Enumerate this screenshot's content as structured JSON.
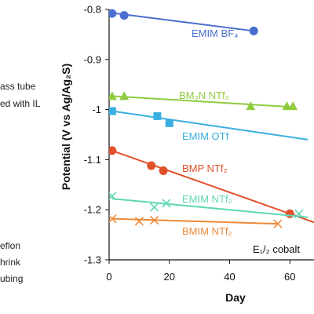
{
  "left_panel": {
    "labels": [
      "ass tube",
      "ed with IL",
      "eflon",
      "hrink",
      "ubing"
    ]
  },
  "colors": {
    "EMIM BF4": "#4a6fd0",
    "BM3N NTf2": "#8fcc3f",
    "EMIM OTf": "#3ab0e0",
    "BMP NTf2": "#e2502a",
    "EMIM NTf2": "#5fd6b4",
    "BMIM NTf2": "#ee8a3a",
    "axis": "#111111"
  },
  "chart_data": {
    "type": "scatter",
    "xlabel": "Day",
    "ylabel": "Potential (V vs Ag/Ag₂S)",
    "xlim": [
      0,
      68
    ],
    "ylim": [
      -1.3,
      -0.8
    ],
    "x_ticks": [
      "0",
      "20",
      "40",
      "60"
    ],
    "y_ticks": [
      "-0.8",
      "-0.9",
      "-1",
      "-1.1",
      "-1.2",
      "-1.3"
    ],
    "annotation": "E₁/₂ cobalt",
    "series": [
      {
        "name": "EMIM BF₄",
        "marker": "circle",
        "points": [
          [
            1,
            -0.808
          ],
          [
            5,
            -0.812
          ],
          [
            48,
            -0.843
          ]
        ],
        "fit": [
          [
            1,
            -0.807
          ],
          [
            48,
            -0.843
          ]
        ]
      },
      {
        "name": "BM₃N NTf₂",
        "marker": "triangle",
        "points": [
          [
            1,
            -0.973
          ],
          [
            5,
            -0.973
          ],
          [
            47,
            -0.993
          ],
          [
            59,
            -0.993
          ],
          [
            61,
            -0.993
          ]
        ],
        "fit": [
          [
            1,
            -0.973
          ],
          [
            61,
            -0.995
          ]
        ]
      },
      {
        "name": "EMIM OTf",
        "marker": "square",
        "points": [
          [
            1,
            -1.003
          ],
          [
            16,
            -1.013
          ],
          [
            20,
            -1.027
          ]
        ],
        "fit": [
          [
            1,
            -1.003
          ],
          [
            66,
            -1.06
          ]
        ]
      },
      {
        "name": "BMP NTf₂",
        "marker": "circle",
        "points": [
          [
            1,
            -1.082
          ],
          [
            14,
            -1.112
          ],
          [
            18,
            -1.122
          ],
          [
            60,
            -1.208
          ]
        ],
        "fit": [
          [
            1,
            -1.082
          ],
          [
            68,
            -1.225
          ]
        ]
      },
      {
        "name": "EMIM NTf₂",
        "marker": "x",
        "points": [
          [
            1,
            -1.173
          ],
          [
            15,
            -1.195
          ],
          [
            19,
            -1.187
          ],
          [
            63,
            -1.208
          ]
        ],
        "fit": [
          [
            1,
            -1.178
          ],
          [
            66,
            -1.215
          ]
        ]
      },
      {
        "name": "BMIM NTf₂",
        "marker": "x",
        "points": [
          [
            1,
            -1.218
          ],
          [
            10,
            -1.223
          ],
          [
            15,
            -1.221
          ],
          [
            56,
            -1.228
          ]
        ],
        "fit": [
          [
            1,
            -1.218
          ],
          [
            56,
            -1.228
          ]
        ]
      }
    ]
  }
}
